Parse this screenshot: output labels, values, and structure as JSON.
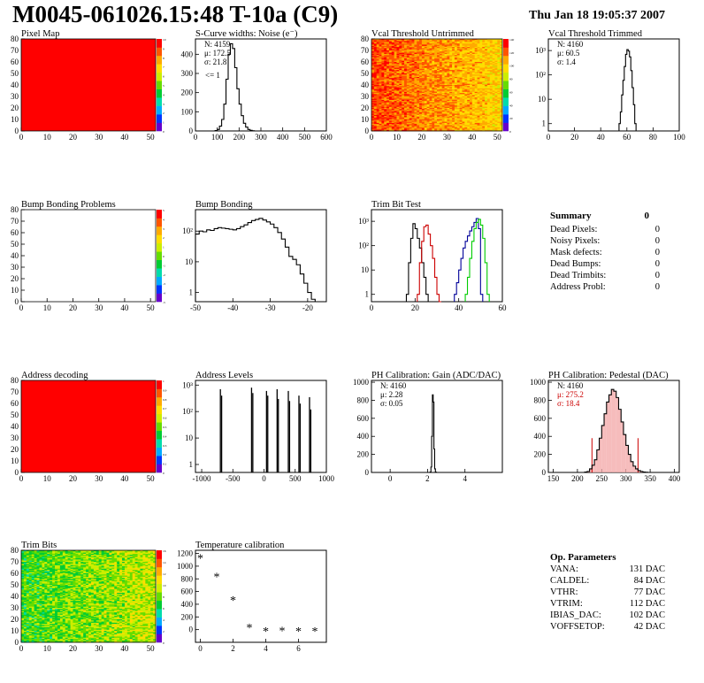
{
  "header": {
    "title": "M0045-061026.15:48 T-10a (C9)",
    "date": "Thu Jan 18 19:05:37 2007"
  },
  "chart_data": [
    {
      "id": "pixel_map",
      "type": "heatmap",
      "title": "Pixel Map",
      "xlim": [
        0,
        52
      ],
      "ylim": [
        0,
        80
      ],
      "xticks": [
        0,
        10,
        20,
        30,
        40,
        50
      ],
      "yticks": [
        0,
        10,
        20,
        30,
        40,
        50,
        60,
        70,
        80
      ],
      "palette": [
        "#6600cc",
        "#0033ff",
        "#00aaff",
        "#00ddaa",
        "#00cc33",
        "#66dd00",
        "#ccee00",
        "#ffdd00",
        "#ffaa00",
        "#ff5500",
        "#ff0000"
      ],
      "fill": "uniform",
      "uniform_level": 10,
      "zlim": [
        0,
        10
      ],
      "zticks": [
        "0",
        "1",
        "2",
        "3",
        "4",
        "5",
        "6",
        "7",
        "8",
        "9",
        "10"
      ]
    },
    {
      "id": "scurve_widths",
      "type": "histogram",
      "title": "S-Curve widths: Noise (e⁻)",
      "xlim": [
        0,
        600
      ],
      "ylim": [
        0,
        480
      ],
      "xticks": [
        0,
        100,
        200,
        300,
        400,
        500,
        600
      ],
      "yticks": [
        0,
        100,
        200,
        300,
        400
      ],
      "stats": [
        "N:  4159",
        "μ:  172.5",
        "σ:  21.8"
      ],
      "annotation": "<= 1",
      "bins_x": [
        90,
        100,
        110,
        120,
        130,
        140,
        150,
        160,
        170,
        180,
        190,
        200,
        210,
        220,
        230,
        240,
        250,
        260
      ],
      "values": [
        2,
        8,
        25,
        60,
        140,
        270,
        400,
        455,
        430,
        330,
        220,
        140,
        80,
        40,
        20,
        8,
        3,
        1
      ]
    },
    {
      "id": "vcal_untrimmed",
      "type": "heatmap",
      "title": "Vcal Threshold Untrimmed",
      "xlim": [
        0,
        52
      ],
      "ylim": [
        0,
        80
      ],
      "xticks": [
        0,
        10,
        20,
        30,
        40,
        50
      ],
      "yticks": [
        0,
        10,
        20,
        30,
        40,
        50,
        60,
        70,
        80
      ],
      "palette": [
        "#6600cc",
        "#0033ff",
        "#00aaff",
        "#00ddaa",
        "#00cc33",
        "#66dd00",
        "#ccee00",
        "#ffdd00",
        "#ffaa00",
        "#ff5500",
        "#ff0000"
      ],
      "fill": "gradient_x",
      "level_left": 9.3,
      "level_right": 7.2,
      "noise": 1.1,
      "zlim": [
        0,
        140
      ],
      "zticks": [
        "0",
        "20",
        "40",
        "60",
        "80",
        "100",
        "120",
        "140"
      ]
    },
    {
      "id": "vcal_trimmed",
      "type": "histogram",
      "title": "Vcal Threshold Trimmed",
      "logy": true,
      "xlim": [
        0,
        100
      ],
      "ylim": [
        0.5,
        3000
      ],
      "xticks": [
        0,
        20,
        40,
        60,
        80,
        100
      ],
      "yticks": [
        1,
        10,
        100,
        1000
      ],
      "ytick_labels": [
        "1",
        "10",
        "10²",
        "10³"
      ],
      "stats": [
        "N:  4160",
        "μ:  60.5",
        "σ:  1.4"
      ],
      "bins_x": [
        54,
        55,
        56,
        57,
        58,
        59,
        60,
        61,
        62,
        63,
        64,
        65,
        66
      ],
      "values": [
        1,
        3,
        15,
        60,
        220,
        700,
        1100,
        950,
        550,
        150,
        30,
        6,
        1
      ]
    },
    {
      "id": "bump_bonding_problems",
      "type": "heatmap",
      "title": "Bump Bonding Problems",
      "xlim": [
        0,
        52
      ],
      "ylim": [
        0,
        80
      ],
      "xticks": [
        0,
        10,
        20,
        30,
        40,
        50
      ],
      "yticks": [
        0,
        10,
        20,
        30,
        40,
        50,
        60,
        70,
        80
      ],
      "palette": [
        "#6600cc",
        "#0033ff",
        "#00aaff",
        "#00ddaa",
        "#00cc33",
        "#66dd00",
        "#ccee00",
        "#ffdd00",
        "#ffaa00",
        "#ff5500",
        "#ff0000"
      ],
      "fill": "none",
      "zlim": [
        -5,
        5
      ],
      "zticks": [
        "-5",
        "-4",
        "-3",
        "-2",
        "-1",
        "0",
        "1",
        "2",
        "3",
        "4",
        "5"
      ]
    },
    {
      "id": "bump_bonding",
      "type": "histogram",
      "title": "Bump Bonding",
      "logy": true,
      "xlim": [
        -50,
        -15
      ],
      "ylim": [
        0.5,
        500
      ],
      "xticks": [
        -50,
        -40,
        -30,
        -20
      ],
      "yticks": [
        1,
        10,
        100
      ],
      "ytick_labels": [
        "1",
        "10",
        "10²"
      ],
      "bins_x": [
        -50,
        -49,
        -48,
        -47,
        -46,
        -45,
        -44,
        -43,
        -42,
        -41,
        -40,
        -39,
        -38,
        -37,
        -36,
        -35,
        -34,
        -33,
        -32,
        -31,
        -30,
        -29,
        -28,
        -27,
        -26,
        -25,
        -24,
        -23,
        -22,
        -21,
        -20,
        -19,
        -18
      ],
      "values": [
        80,
        100,
        95,
        110,
        105,
        120,
        130,
        125,
        120,
        115,
        110,
        120,
        140,
        160,
        190,
        220,
        240,
        260,
        230,
        200,
        170,
        130,
        90,
        55,
        30,
        15,
        12,
        8,
        4,
        2,
        1,
        0.6,
        0
      ]
    },
    {
      "id": "trim_bit_test",
      "type": "histogram",
      "title": "Trim Bit Test",
      "logy": true,
      "xlim": [
        0,
        60
      ],
      "ylim": [
        0.5,
        3000
      ],
      "xticks": [
        0,
        20,
        40,
        60
      ],
      "yticks": [
        1,
        10,
        100,
        1000
      ],
      "ytick_labels": [
        "1",
        "10",
        "10²",
        "10³"
      ],
      "series": [
        {
          "color": "#000000",
          "bins_x": [
            16,
            17,
            18,
            19,
            20,
            21,
            22,
            23,
            24,
            25,
            26
          ],
          "values": [
            1,
            20,
            200,
            800,
            500,
            200,
            80,
            20,
            5,
            1,
            0
          ]
        },
        {
          "color": "#cc0000",
          "bins_x": [
            21,
            22,
            23,
            24,
            25,
            26,
            27,
            28,
            29,
            30,
            31
          ],
          "values": [
            1,
            20,
            150,
            600,
            700,
            300,
            100,
            30,
            5,
            1,
            0
          ]
        },
        {
          "color": "#000099",
          "bins_x": [
            38,
            39,
            40,
            41,
            42,
            43,
            44,
            45,
            46,
            47,
            48,
            49,
            50
          ],
          "values": [
            1,
            3,
            10,
            30,
            80,
            150,
            250,
            400,
            600,
            900,
            1300,
            500,
            1
          ]
        },
        {
          "color": "#00cc00",
          "bins_x": [
            43,
            44,
            45,
            46,
            47,
            48,
            49,
            50,
            51,
            52,
            53
          ],
          "values": [
            1,
            5,
            30,
            150,
            500,
            900,
            1200,
            700,
            200,
            20,
            1
          ]
        }
      ]
    },
    {
      "id": "summary",
      "type": "table",
      "title": "Summary",
      "total": "0",
      "rows": [
        {
          "label": "Dead Pixels:",
          "value": "0"
        },
        {
          "label": "Noisy Pixels:",
          "value": "0"
        },
        {
          "label": "Mask defects:",
          "value": "0"
        },
        {
          "label": "Dead Bumps:",
          "value": "0"
        },
        {
          "label": "Dead Trimbits:",
          "value": "0"
        },
        {
          "label": "Address Probl:",
          "value": "0"
        }
      ]
    },
    {
      "id": "address_decoding",
      "type": "heatmap",
      "title": "Address decoding",
      "xlim": [
        0,
        52
      ],
      "ylim": [
        0,
        80
      ],
      "xticks": [
        0,
        10,
        20,
        30,
        40,
        50
      ],
      "yticks": [
        0,
        10,
        20,
        30,
        40,
        50,
        60,
        70,
        80
      ],
      "palette": [
        "#6600cc",
        "#0033ff",
        "#00aaff",
        "#00ddaa",
        "#00cc33",
        "#66dd00",
        "#ccee00",
        "#ffdd00",
        "#ffaa00",
        "#ff5500",
        "#ff0000"
      ],
      "fill": "uniform",
      "uniform_level": 10,
      "zlim": [
        0,
        1
      ],
      "zticks": [
        "0",
        "0.1",
        "0.2",
        "0.3",
        "0.4",
        "0.5",
        "0.6",
        "0.7",
        "0.8",
        "0.9",
        "1"
      ]
    },
    {
      "id": "address_levels",
      "type": "histogram",
      "title": "Address Levels",
      "logy": true,
      "xlim": [
        -1100,
        1000
      ],
      "ylim": [
        0.5,
        1500
      ],
      "xticks": [
        -1000,
        -500,
        0,
        500,
        1000
      ],
      "yticks": [
        1,
        10,
        100,
        1000
      ],
      "ytick_labels": [
        "1",
        "10",
        "10²",
        "10³"
      ],
      "spikes": [
        {
          "x": -700,
          "value": 700
        },
        {
          "x": -680,
          "value": 400
        },
        {
          "x": -200,
          "value": 800
        },
        {
          "x": -180,
          "value": 500
        },
        {
          "x": 40,
          "value": 600
        },
        {
          "x": 60,
          "value": 400
        },
        {
          "x": 210,
          "value": 700
        },
        {
          "x": 230,
          "value": 300
        },
        {
          "x": 390,
          "value": 600
        },
        {
          "x": 410,
          "value": 250
        },
        {
          "x": 560,
          "value": 400
        },
        {
          "x": 580,
          "value": 200
        },
        {
          "x": 730,
          "value": 350
        },
        {
          "x": 750,
          "value": 120
        }
      ]
    },
    {
      "id": "ph_gain",
      "type": "histogram",
      "title": "PH Calibration: Gain (ADC/DAC)",
      "xlim": [
        -1,
        6
      ],
      "ylim": [
        0,
        1020
      ],
      "xticks": [
        0,
        2,
        4
      ],
      "yticks": [
        0,
        200,
        400,
        600,
        800,
        1000
      ],
      "stats": [
        "N:  4160",
        "μ:  2.28",
        "σ:  0.05"
      ],
      "bins_x": [
        2.14,
        2.18,
        2.22,
        2.26,
        2.3,
        2.34,
        2.38,
        2.42
      ],
      "values": [
        5,
        60,
        400,
        860,
        780,
        260,
        40,
        5
      ]
    },
    {
      "id": "ph_pedestal",
      "type": "histogram",
      "title": "PH Calibration: Pedestal (DAC)",
      "xlim": [
        140,
        410
      ],
      "ylim": [
        0,
        1020
      ],
      "xticks": [
        150,
        200,
        250,
        300,
        350,
        400
      ],
      "yticks": [
        0,
        200,
        400,
        600,
        800,
        1000
      ],
      "stats": [
        "N:  4160",
        "μ:  275.2",
        "σ:  18.4"
      ],
      "stats_colors": [
        "#000000",
        "#cc0000",
        "#cc0000"
      ],
      "cut_lines": [
        230,
        325
      ],
      "bins_x": [
        215,
        220,
        225,
        230,
        235,
        240,
        245,
        250,
        255,
        260,
        265,
        270,
        275,
        280,
        285,
        290,
        295,
        300,
        305,
        310,
        315,
        320,
        325,
        330,
        335,
        340
      ],
      "values": [
        5,
        10,
        40,
        80,
        140,
        250,
        380,
        520,
        650,
        780,
        860,
        920,
        900,
        830,
        700,
        560,
        420,
        300,
        200,
        120,
        70,
        40,
        20,
        10,
        5,
        2
      ]
    },
    {
      "id": "trim_bits",
      "type": "heatmap",
      "title": "Trim Bits",
      "xlim": [
        0,
        52
      ],
      "ylim": [
        0,
        80
      ],
      "xticks": [
        0,
        10,
        20,
        30,
        40,
        50
      ],
      "yticks": [
        0,
        10,
        20,
        30,
        40,
        50,
        60,
        70,
        80
      ],
      "palette": [
        "#6600cc",
        "#0033ff",
        "#00aaff",
        "#00ddaa",
        "#00cc33",
        "#66dd00",
        "#ccee00",
        "#ffdd00",
        "#ffaa00",
        "#ff5500",
        "#ff0000"
      ],
      "fill": "gradient_x",
      "level_left": 4.5,
      "level_right": 6.0,
      "noise": 1.4,
      "zlim": [
        0,
        16
      ],
      "zticks": [
        "0",
        "2",
        "4",
        "6",
        "8",
        "10",
        "12",
        "14",
        "16"
      ]
    },
    {
      "id": "temperature_calibration",
      "type": "scatter",
      "title": "Temperature calibration",
      "xlim": [
        -0.3,
        7.7
      ],
      "ylim": [
        -200,
        1250
      ],
      "xticks": [
        0,
        2,
        4,
        6
      ],
      "yticks": [
        0,
        200,
        400,
        600,
        800,
        1000,
        1200
      ],
      "x": [
        0,
        1,
        2,
        3,
        4,
        5,
        6,
        7
      ],
      "y": [
        1130,
        840,
        470,
        40,
        -20,
        -10,
        -20,
        -20
      ]
    },
    {
      "id": "op_parameters",
      "type": "table",
      "title": "Op. Parameters",
      "rows": [
        {
          "label": "VANA:",
          "value": "131 DAC"
        },
        {
          "label": "CALDEL:",
          "value": "84 DAC"
        },
        {
          "label": "VTHR:",
          "value": "77 DAC"
        },
        {
          "label": "VTRIM:",
          "value": "112 DAC"
        },
        {
          "label": "IBIAS_DAC:",
          "value": "102 DAC"
        },
        {
          "label": "VOFFSETOP:",
          "value": "42 DAC"
        }
      ]
    }
  ]
}
